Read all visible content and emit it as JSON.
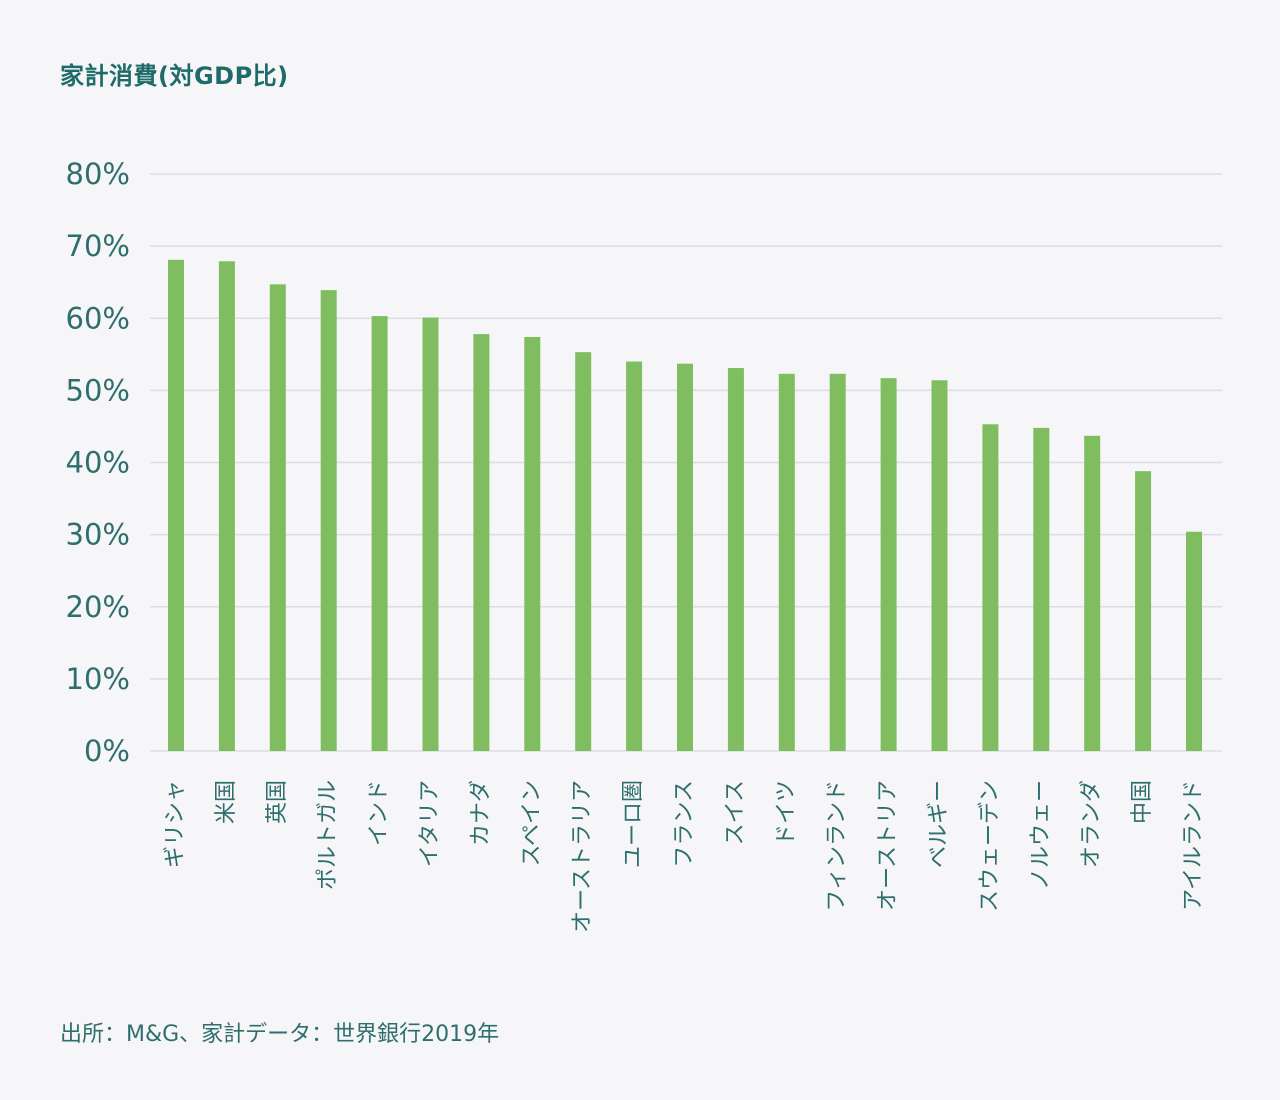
{
  "colors": {
    "background": "#f6f6f8",
    "bar": "#80bd60",
    "grid": "#dcdde2",
    "text": "#1f6b69"
  },
  "title": "家計消費(対GDP比)",
  "source": "出所：M&G、家計データ：世界銀行2019年",
  "chart_data": {
    "type": "bar",
    "title": "家計消費(対GDP比)",
    "xlabel": "",
    "ylabel": "",
    "ylim": [
      0,
      80
    ],
    "y_ticks": [
      "0%",
      "10%",
      "20%",
      "30%",
      "40%",
      "50%",
      "60%",
      "70%",
      "80%"
    ],
    "y_tick_values": [
      0,
      10,
      20,
      30,
      40,
      50,
      60,
      70,
      80
    ],
    "grid": true,
    "legend": "none",
    "categories": [
      "ギリシャ",
      "米国",
      "英国",
      "ポルトガル",
      "インド",
      "イタリア",
      "カナダ",
      "スペイン",
      "オーストラリア",
      "ユーロ圏",
      "フランス",
      "スイス",
      "ドイツ",
      "フィンランド",
      "オーストリア",
      "ベルギー",
      "スウェーデン",
      "ノルウェー",
      "オランダ",
      "中国",
      "アイルランド"
    ],
    "values": [
      68.1,
      67.9,
      64.7,
      63.9,
      60.3,
      60.1,
      57.8,
      57.4,
      55.3,
      54.0,
      53.7,
      53.1,
      52.3,
      52.3,
      51.7,
      51.4,
      45.3,
      44.8,
      43.7,
      38.8,
      30.4
    ]
  }
}
